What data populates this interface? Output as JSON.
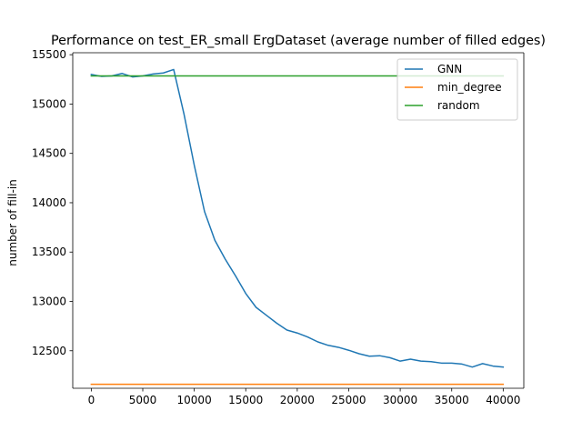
{
  "chart_data": {
    "type": "line",
    "title": "Performance on test_ER_small ErgDataset (average number of filled edges)",
    "xlabel": "",
    "ylabel": "number of fill-in",
    "xlim": [
      -1800,
      42000
    ],
    "ylim": [
      12120,
      15520
    ],
    "xticks": [
      0,
      5000,
      10000,
      15000,
      20000,
      25000,
      30000,
      35000,
      40000
    ],
    "yticks": [
      12500,
      13000,
      13500,
      14000,
      14500,
      15000,
      15500
    ],
    "grid": false,
    "legend_position": "top-right",
    "series": [
      {
        "name": "GNN",
        "color": "#1f77b4",
        "x": [
          0,
          1000,
          2000,
          3000,
          4000,
          5000,
          6000,
          7000,
          8000,
          9000,
          10000,
          11000,
          12000,
          13000,
          14000,
          15000,
          16000,
          17000,
          18000,
          19000,
          20000,
          21000,
          22000,
          23000,
          24000,
          25000,
          26000,
          27000,
          28000,
          29000,
          30000,
          31000,
          32000,
          33000,
          34000,
          35000,
          36000,
          37000,
          38000,
          39000,
          40000
        ],
        "y": [
          15300,
          15280,
          15285,
          15310,
          15275,
          15285,
          15305,
          15315,
          15350,
          14900,
          14380,
          13910,
          13620,
          13430,
          13260,
          13080,
          12940,
          12860,
          12780,
          12710,
          12680,
          12640,
          12590,
          12555,
          12535,
          12505,
          12470,
          12445,
          12450,
          12430,
          12395,
          12415,
          12395,
          12390,
          12375,
          12375,
          12365,
          12335,
          12370,
          12345,
          12335
        ]
      },
      {
        "name": "min_degree",
        "color": "#ff7f0e",
        "x": [
          0,
          40000
        ],
        "y": [
          12160,
          12160
        ]
      },
      {
        "name": "random",
        "color": "#2ca02c",
        "x": [
          0,
          40000
        ],
        "y": [
          15285,
          15285
        ]
      }
    ]
  }
}
